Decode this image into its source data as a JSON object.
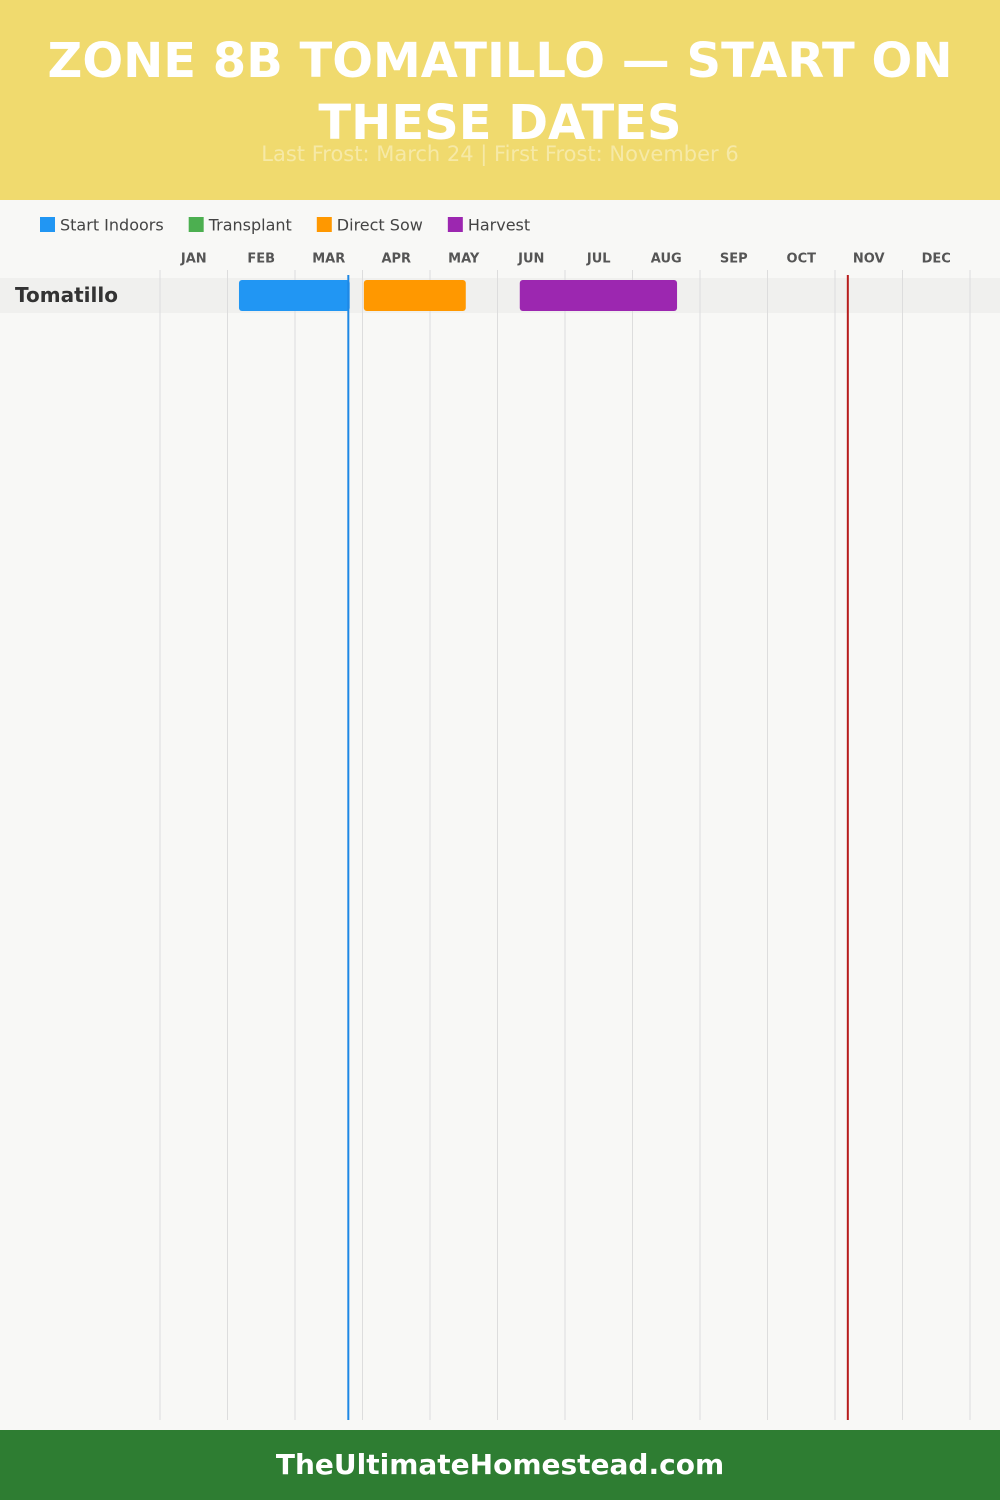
{
  "chart_data": {
    "type": "gantt",
    "title": "ZONE 8B TOMATILLO — START ON THESE DATES",
    "subtitle": "Last Frost: March 24 | First Frost: November 6",
    "categories": [
      "Tomatillo"
    ],
    "months": [
      "JAN",
      "FEB",
      "MAR",
      "APR",
      "MAY",
      "JUN",
      "JUL",
      "AUG",
      "SEP",
      "OCT",
      "NOV",
      "DEC"
    ],
    "xlim": [
      0,
      12
    ],
    "series": [
      {
        "name": "Start Indoors",
        "color": "#2196f3",
        "start": [
          1.17
        ],
        "end": [
          2.81
        ]
      },
      {
        "name": "Transplant",
        "color": "#4caf50",
        "start": [
          null
        ],
        "end": [
          null
        ]
      },
      {
        "name": "Direct Sow",
        "color": "#ff9800",
        "start": [
          3.02
        ],
        "end": [
          4.53
        ]
      },
      {
        "name": "Harvest",
        "color": "#9c27b0",
        "start": [
          5.33
        ],
        "end": [
          7.66
        ]
      }
    ],
    "frost_lines": [
      {
        "value": 2.79,
        "color": "#1e88e5"
      },
      {
        "value": 10.19,
        "color": "#b71c1c"
      }
    ],
    "footer": "TheUltimateHomestead.com"
  }
}
